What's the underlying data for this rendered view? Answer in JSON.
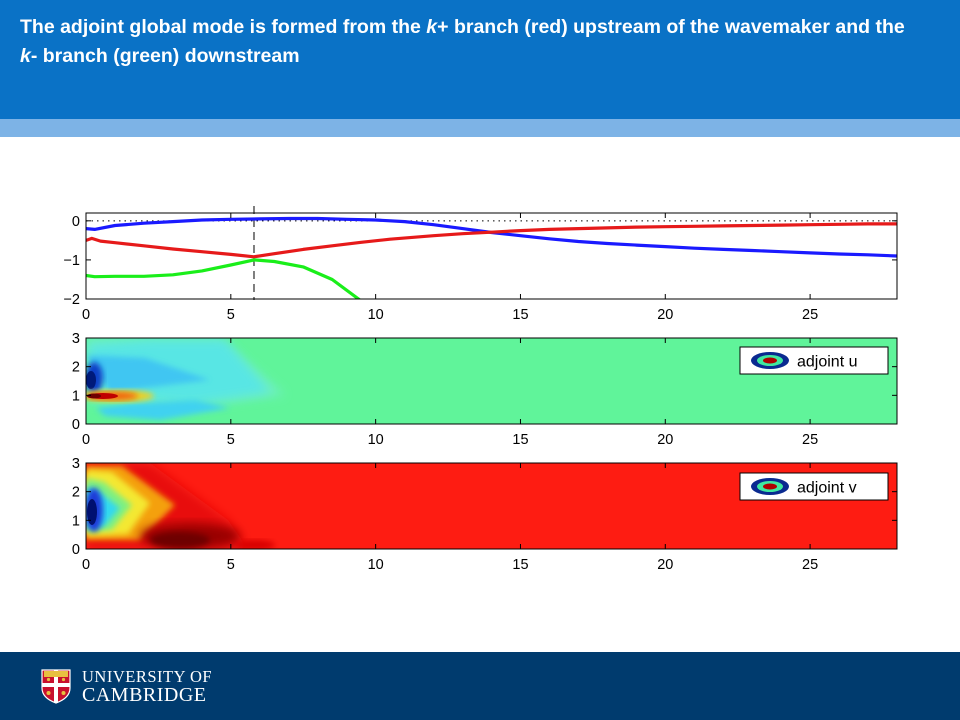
{
  "slide": {
    "title_parts": [
      "The adjoint global mode is formed from the ",
      "k",
      "+ branch (red) upstream of the wavemaker and the ",
      "k",
      "- branch (green) downstream"
    ],
    "footer_line1": "UNIVERSITY OF",
    "footer_line2": "CAMBRIDGE",
    "colors": {
      "title_bar": "#0a72c6",
      "sub_bar": "#7db3e6",
      "footer": "#003b6e"
    }
  },
  "chart_data": [
    {
      "type": "line",
      "xlim": [
        0,
        28
      ],
      "ylim": [
        -2,
        0.2
      ],
      "xticks": [
        "0",
        "5",
        "10",
        "15",
        "20",
        "25"
      ],
      "yticks": [
        "0",
        "−1",
        "−2"
      ],
      "reference_line_y": 0,
      "wavemaker_x": 5.8,
      "series": [
        {
          "color": "#1a1aff",
          "points": [
            [
              0,
              -0.2
            ],
            [
              0.3,
              -0.22
            ],
            [
              1,
              -0.12
            ],
            [
              2,
              -0.06
            ],
            [
              3,
              -0.02
            ],
            [
              4,
              0.02
            ],
            [
              5,
              0.04
            ],
            [
              6,
              0.05
            ],
            [
              7,
              0.06
            ],
            [
              8,
              0.06
            ],
            [
              9,
              0.04
            ],
            [
              10,
              0.02
            ],
            [
              11,
              -0.02
            ],
            [
              12,
              -0.1
            ],
            [
              13,
              -0.2
            ],
            [
              14,
              -0.3
            ],
            [
              15,
              -0.38
            ],
            [
              16,
              -0.46
            ],
            [
              17,
              -0.53
            ],
            [
              18,
              -0.58
            ],
            [
              19,
              -0.62
            ],
            [
              20,
              -0.66
            ],
            [
              21,
              -0.7
            ],
            [
              22,
              -0.73
            ],
            [
              23,
              -0.76
            ],
            [
              24,
              -0.79
            ],
            [
              25,
              -0.82
            ],
            [
              26,
              -0.85
            ],
            [
              27,
              -0.87
            ],
            [
              28,
              -0.9
            ]
          ]
        },
        {
          "color": "#e61a1a",
          "points": [
            [
              0,
              -0.5
            ],
            [
              0.2,
              -0.45
            ],
            [
              0.5,
              -0.52
            ],
            [
              1,
              -0.56
            ],
            [
              2,
              -0.64
            ],
            [
              3,
              -0.72
            ],
            [
              4,
              -0.79
            ],
            [
              5,
              -0.86
            ],
            [
              5.8,
              -0.92
            ],
            [
              6.5,
              -0.84
            ],
            [
              7.5,
              -0.73
            ],
            [
              8.5,
              -0.64
            ],
            [
              9.5,
              -0.55
            ],
            [
              10.5,
              -0.47
            ],
            [
              12,
              -0.38
            ],
            [
              13,
              -0.33
            ],
            [
              14,
              -0.29
            ],
            [
              15,
              -0.25
            ],
            [
              16,
              -0.22
            ],
            [
              17,
              -0.2
            ],
            [
              18,
              -0.18
            ],
            [
              19,
              -0.16
            ],
            [
              20,
              -0.15
            ],
            [
              21,
              -0.14
            ],
            [
              22,
              -0.13
            ],
            [
              23,
              -0.12
            ],
            [
              24,
              -0.11
            ],
            [
              25,
              -0.1
            ],
            [
              26,
              -0.09
            ],
            [
              27,
              -0.08
            ],
            [
              28,
              -0.08
            ]
          ]
        },
        {
          "color": "#1aee1a",
          "points": [
            [
              0,
              -1.4
            ],
            [
              0.3,
              -1.43
            ],
            [
              1,
              -1.42
            ],
            [
              2,
              -1.42
            ],
            [
              3,
              -1.38
            ],
            [
              4,
              -1.28
            ],
            [
              5,
              -1.13
            ],
            [
              5.8,
              -1.0
            ],
            [
              6.5,
              -1.04
            ],
            [
              7.5,
              -1.18
            ],
            [
              8.5,
              -1.5
            ],
            [
              9.5,
              -2.05
            ]
          ]
        }
      ]
    },
    {
      "type": "heatmap",
      "xlim": [
        0,
        28
      ],
      "ylim": [
        0,
        3
      ],
      "xticks": [
        "0",
        "5",
        "10",
        "15",
        "20",
        "25"
      ],
      "yticks": [
        "3",
        "2",
        "1",
        "0"
      ],
      "legend": "adjoint u",
      "background_color": "#60f49a"
    },
    {
      "type": "heatmap",
      "xlim": [
        0,
        28
      ],
      "ylim": [
        0,
        3
      ],
      "xticks": [
        "0",
        "5",
        "10",
        "15",
        "20",
        "25"
      ],
      "yticks": [
        "3",
        "2",
        "1",
        "0"
      ],
      "legend": "adjoint v",
      "background_color": "#fe1c12"
    }
  ]
}
